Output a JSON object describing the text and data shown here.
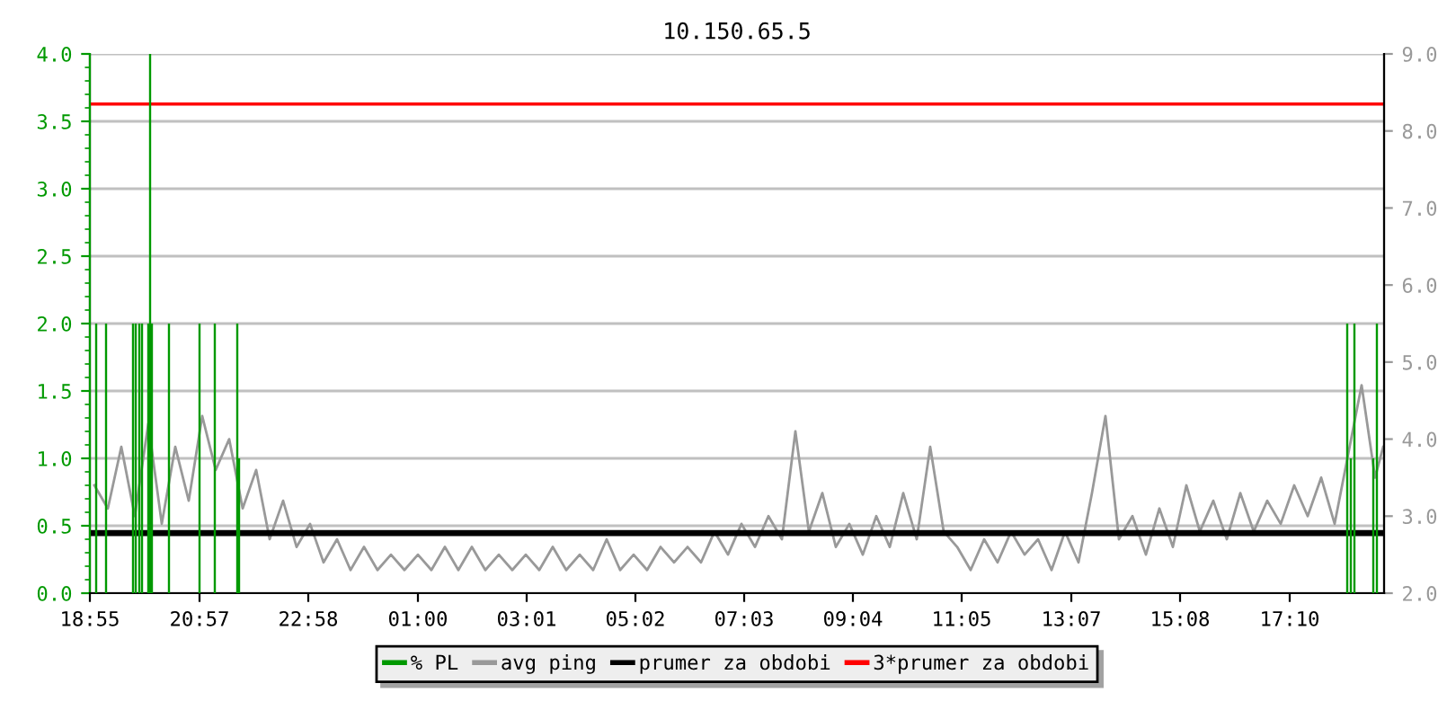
{
  "chart_data": {
    "type": "line",
    "title": "10.150.65.5",
    "xlim": [
      "2000-01-01T18:55",
      "2000-01-02T18:55"
    ],
    "xticks": [
      {
        "value": "2000-01-01T18:55",
        "label": "18:55"
      },
      {
        "value": "2000-01-01T20:57",
        "label": "20:57"
      },
      {
        "value": "2000-01-01T22:58",
        "label": "22:58"
      },
      {
        "value": "2000-01-02T01:00",
        "label": "01:00"
      },
      {
        "value": "2000-01-02T03:01",
        "label": "03:01"
      },
      {
        "value": "2000-01-02T05:02",
        "label": "05:02"
      },
      {
        "value": "2000-01-02T07:03",
        "label": "07:03"
      },
      {
        "value": "2000-01-02T09:04",
        "label": "09:04"
      },
      {
        "value": "2000-01-02T11:05",
        "label": "11:05"
      },
      {
        "value": "2000-01-02T13:07",
        "label": "13:07"
      },
      {
        "value": "2000-01-02T15:08",
        "label": "15:08"
      },
      {
        "value": "2000-01-02T17:10",
        "label": "17:10"
      }
    ],
    "ylim": [
      0,
      4.0
    ],
    "yticks": [
      {
        "value": 0,
        "label": "0.0"
      },
      {
        "value": 0.5,
        "label": "0.5"
      },
      {
        "value": 1.0,
        "label": "1.0"
      },
      {
        "value": 1.5,
        "label": "1.5"
      },
      {
        "value": 2.0,
        "label": "2.0"
      },
      {
        "value": 2.5,
        "label": "2.5"
      },
      {
        "value": 3.0,
        "label": "3.0"
      },
      {
        "value": 3.5,
        "label": "3.5"
      },
      {
        "value": 4.0,
        "label": "4.0"
      }
    ],
    "y2lim": [
      2.0,
      9.0
    ],
    "y2ticks": [
      {
        "value": 2,
        "label": "2.0"
      },
      {
        "value": 3,
        "label": "3.0"
      },
      {
        "value": 4,
        "label": "4.0"
      },
      {
        "value": 5,
        "label": "5.0"
      },
      {
        "value": 6,
        "label": "6.0"
      },
      {
        "value": 7,
        "label": "7.0"
      },
      {
        "value": 8,
        "label": "8.0"
      },
      {
        "value": 9,
        "label": "9.0"
      }
    ],
    "grid": "y",
    "legend": "bottom",
    "series": [
      {
        "name": "% PL",
        "type": "bar",
        "color": "#009900",
        "x": [
          "2000-01-01T19:02",
          "2000-01-01T19:13",
          "2000-01-01T19:43",
          "2000-01-01T19:46",
          "2000-01-01T19:50",
          "2000-01-01T19:53",
          "2000-01-01T20:00",
          "2000-01-01T20:02",
          "2000-01-01T20:04",
          "2000-01-01T20:23",
          "2000-01-01T20:57",
          "2000-01-01T21:14",
          "2000-01-01T21:39",
          "2000-01-01T21:41",
          "2000-01-02T18:14",
          "2000-01-02T18:18",
          "2000-01-02T18:22",
          "2000-01-02T18:43",
          "2000-01-02T18:47"
        ],
        "values": [
          2.0,
          2.0,
          2.0,
          2.0,
          2.0,
          2.0,
          2.0,
          4.0,
          2.0,
          2.0,
          2.0,
          2.0,
          2.0,
          1.0,
          2.0,
          1.0,
          2.0,
          1.0,
          2.0
        ]
      },
      {
        "name": "avg ping",
        "axis": "y2",
        "color": "#999999",
        "x": [
          "2000-01-01T19:00",
          "2000-01-01T19:15",
          "2000-01-01T19:30",
          "2000-01-01T19:45",
          "2000-01-01T20:00",
          "2000-01-01T20:15",
          "2000-01-01T20:30",
          "2000-01-01T20:45",
          "2000-01-01T21:00",
          "2000-01-01T21:15",
          "2000-01-01T21:30",
          "2000-01-01T21:45",
          "2000-01-01T22:00",
          "2000-01-01T22:15",
          "2000-01-01T22:30",
          "2000-01-01T22:45",
          "2000-01-01T23:00",
          "2000-01-01T23:15",
          "2000-01-01T23:30",
          "2000-01-01T23:45",
          "2000-01-02T00:00",
          "2000-01-02T00:15",
          "2000-01-02T00:30",
          "2000-01-02T00:45",
          "2000-01-02T01:00",
          "2000-01-02T01:15",
          "2000-01-02T01:30",
          "2000-01-02T01:45",
          "2000-01-02T02:00",
          "2000-01-02T02:15",
          "2000-01-02T02:30",
          "2000-01-02T02:45",
          "2000-01-02T03:00",
          "2000-01-02T03:15",
          "2000-01-02T03:30",
          "2000-01-02T03:45",
          "2000-01-02T04:00",
          "2000-01-02T04:15",
          "2000-01-02T04:30",
          "2000-01-02T04:45",
          "2000-01-02T05:00",
          "2000-01-02T05:15",
          "2000-01-02T05:30",
          "2000-01-02T05:45",
          "2000-01-02T06:00",
          "2000-01-02T06:15",
          "2000-01-02T06:30",
          "2000-01-02T06:45",
          "2000-01-02T07:00",
          "2000-01-02T07:15",
          "2000-01-02T07:30",
          "2000-01-02T07:45",
          "2000-01-02T08:00",
          "2000-01-02T08:15",
          "2000-01-02T08:30",
          "2000-01-02T08:45",
          "2000-01-02T09:00",
          "2000-01-02T09:15",
          "2000-01-02T09:30",
          "2000-01-02T09:45",
          "2000-01-02T10:00",
          "2000-01-02T10:15",
          "2000-01-02T10:30",
          "2000-01-02T10:45",
          "2000-01-02T11:00",
          "2000-01-02T11:15",
          "2000-01-02T11:30",
          "2000-01-02T11:45",
          "2000-01-02T12:00",
          "2000-01-02T12:15",
          "2000-01-02T12:30",
          "2000-01-02T12:45",
          "2000-01-02T13:00",
          "2000-01-02T13:15",
          "2000-01-02T13:30",
          "2000-01-02T13:45",
          "2000-01-02T14:00",
          "2000-01-02T14:15",
          "2000-01-02T14:30",
          "2000-01-02T14:45",
          "2000-01-02T15:00",
          "2000-01-02T15:15",
          "2000-01-02T15:30",
          "2000-01-02T15:45",
          "2000-01-02T16:00",
          "2000-01-02T16:15",
          "2000-01-02T16:30",
          "2000-01-02T16:45",
          "2000-01-02T17:00",
          "2000-01-02T17:15",
          "2000-01-02T17:30",
          "2000-01-02T17:45",
          "2000-01-02T18:00",
          "2000-01-02T18:15",
          "2000-01-02T18:30",
          "2000-01-02T18:45",
          "2000-01-02T18:54"
        ],
        "values": [
          3.4,
          3.1,
          3.9,
          3.0,
          4.2,
          2.9,
          3.9,
          3.2,
          4.3,
          3.6,
          4.0,
          3.1,
          3.6,
          2.7,
          3.2,
          2.6,
          2.9,
          2.4,
          2.7,
          2.3,
          2.6,
          2.3,
          2.5,
          2.3,
          2.5,
          2.3,
          2.6,
          2.3,
          2.6,
          2.3,
          2.5,
          2.3,
          2.5,
          2.3,
          2.6,
          2.3,
          2.5,
          2.3,
          2.7,
          2.3,
          2.5,
          2.3,
          2.6,
          2.4,
          2.6,
          2.4,
          2.8,
          2.5,
          2.9,
          2.6,
          3.0,
          2.7,
          4.1,
          2.8,
          3.3,
          2.6,
          2.9,
          2.5,
          3.0,
          2.6,
          3.3,
          2.7,
          3.9,
          2.8,
          2.6,
          2.3,
          2.7,
          2.4,
          2.8,
          2.5,
          2.7,
          2.3,
          2.8,
          2.4,
          3.3,
          4.3,
          2.7,
          3.0,
          2.5,
          3.1,
          2.6,
          3.4,
          2.8,
          3.2,
          2.7,
          3.3,
          2.8,
          3.2,
          2.9,
          3.4,
          3.0,
          3.5,
          2.9,
          3.8,
          4.7,
          3.5,
          3.9
        ]
      }
    ],
    "ref_lines": [
      {
        "axis": "y2",
        "value": 2.78,
        "label": "prumer za obdobi",
        "color": "#000000"
      },
      {
        "axis": "y2",
        "value": 8.35,
        "label": "3*prumer za obdobi",
        "color": "#ff0000"
      }
    ]
  }
}
